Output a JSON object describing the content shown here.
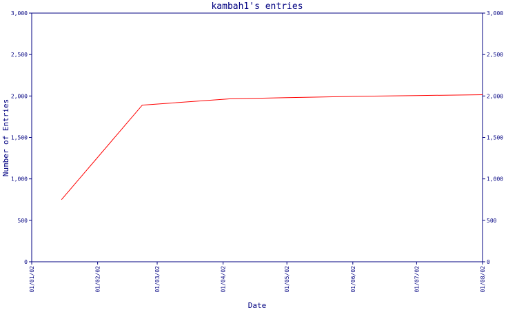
{
  "chart_data": {
    "type": "line",
    "title": "kambah1's entries",
    "xlabel": "Date",
    "ylabel": "Number of Entries",
    "ylim": [
      0,
      3000
    ],
    "xlim": [
      "2002-01-01",
      "2002-08-01"
    ],
    "y_ticks": [
      "0",
      "500",
      "1,000",
      "1,500",
      "2,000",
      "2,500",
      "3,000"
    ],
    "y_tick_values": [
      0,
      500,
      1000,
      1500,
      2000,
      2500,
      3000
    ],
    "x_ticks": [
      "01/01/02",
      "01/02/02",
      "01/03/02",
      "01/04/02",
      "01/05/02",
      "01/06/02",
      "01/07/02",
      "01/08/02"
    ],
    "x_tick_dates": [
      "2002-01-01",
      "2002-02-01",
      "2002-03-01",
      "2002-04-01",
      "2002-05-01",
      "2002-06-01",
      "2002-07-01",
      "2002-08-01"
    ],
    "grid": false,
    "right_axis": true,
    "colors": {
      "axis": "#000080",
      "line": "#ff0000",
      "text": "#000080",
      "background": "#ffffff"
    },
    "series": [
      {
        "x": [
          "2002-01-15",
          "2002-02-22",
          "2002-04-04",
          "2002-05-01",
          "2002-06-01",
          "2002-07-01",
          "2002-08-01"
        ],
        "values": [
          750,
          1890,
          1965,
          1980,
          1995,
          2005,
          2015
        ]
      }
    ]
  }
}
